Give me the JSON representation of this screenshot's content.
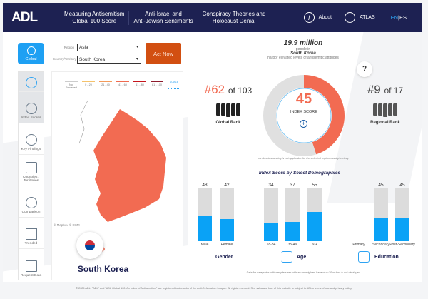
{
  "header": {
    "logo": "ADL",
    "nav": [
      {
        "l1": "Measuring Antisemitism",
        "l2": "Global 100 Score"
      },
      {
        "l1": "Anti-Israel and",
        "l2": "Anti-Jewish Sentiments"
      },
      {
        "l1": "Conspiracy Theories and",
        "l2": "Holocaust Denial"
      }
    ],
    "about": "About",
    "atlas": "ATLAS",
    "lang_en": "EN",
    "lang_sep": "|",
    "lang_es": "ES"
  },
  "controls": {
    "global": "Global",
    "region_label": "Region",
    "region": "Asia",
    "country_label": "Country/Territory",
    "country": "South Korea",
    "act_now": "Act Now"
  },
  "sidebar": [
    "Index Scores",
    "Key Findings",
    "Countries / Territories",
    "Comparison",
    "Trended",
    "Request Data"
  ],
  "map": {
    "legend": [
      "Not Surveyed",
      "0 - 20",
      "21 - 40",
      "41 - 60",
      "61 - 80",
      "81 - 100"
    ],
    "legend_colors": [
      "#cccccc",
      "#f5c26b",
      "#f39a5a",
      "#ef6a50",
      "#c6161c",
      "#8e1b2c"
    ],
    "scale": "SCALE",
    "attribution": "© Mapbox © OSM",
    "country_name": "South Korea",
    "fill": "#f26b52"
  },
  "summary": {
    "count": "19.9 million",
    "l1": "people in",
    "country": "South Korea",
    "l2": "harbor elevated levels of antisemitic attitudes"
  },
  "score": {
    "value": "45",
    "label": "INDEX SCORE",
    "percent": 45,
    "color": "#f26b52"
  },
  "global_rank": {
    "rank": "#62",
    "of": "of 103",
    "label": "Global Rank"
  },
  "regional_rank": {
    "rank": "#9",
    "of": "of 17",
    "label": "Regional Rank"
  },
  "help": "?",
  "na_note": "n/a denotes ranking is not applicable for the selected region/country/territory",
  "demographics": {
    "title": "Index Score by Select Demographics",
    "groups": [
      {
        "name": "Gender",
        "items": [
          {
            "label": "Male",
            "value": 48
          },
          {
            "label": "Female",
            "value": 42
          }
        ]
      },
      {
        "name": "Age",
        "items": [
          {
            "label": "18-34",
            "value": 34
          },
          {
            "label": "35-49",
            "value": 37
          },
          {
            "label": "50+",
            "value": 55
          }
        ]
      },
      {
        "name": "Education",
        "items": [
          {
            "label": "Primary",
            "value": null
          },
          {
            "label": "Secondary",
            "value": 45
          },
          {
            "label": "Post-Secondary",
            "value": 45
          }
        ]
      }
    ],
    "note": "Data for categories with sample sizes with an unweighted base of n=30 or less is not displayed"
  },
  "footer": "© 2025 ADL. \"ADL\" and \"ADL Global 100: An Index of Antisemitism\" are registered trademarks of the Anti-Defamation League. All rights reserved. See ssl.seals. Use of this website is subject to ADL's terms of use and privacy policy."
}
